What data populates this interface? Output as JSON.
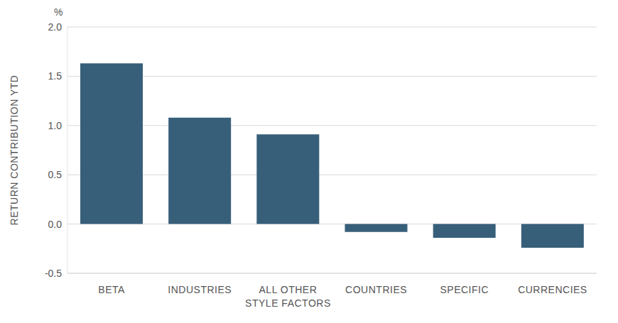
{
  "chart_data": {
    "type": "bar",
    "y_unit": "%",
    "y_label": "RETURN CONTRIBUTION YTD",
    "categories": [
      "BETA",
      "INDUSTRIES",
      "ALL OTHER STYLE FACTORS",
      "COUNTRIES",
      "SPECIFIC",
      "CURRENCIES"
    ],
    "values": [
      1.63,
      1.08,
      0.91,
      -0.08,
      -0.14,
      -0.24
    ],
    "color": "#375f7a",
    "ylim": [
      -0.5,
      2.0
    ],
    "yticks": [
      -0.5,
      {
        "value": 0,
        "label": "0.0"
      },
      0.5,
      {
        "value": 1,
        "label": "1.0"
      },
      1.5,
      {
        "value": 2,
        "label": "2.0"
      }
    ],
    "grid": true
  }
}
